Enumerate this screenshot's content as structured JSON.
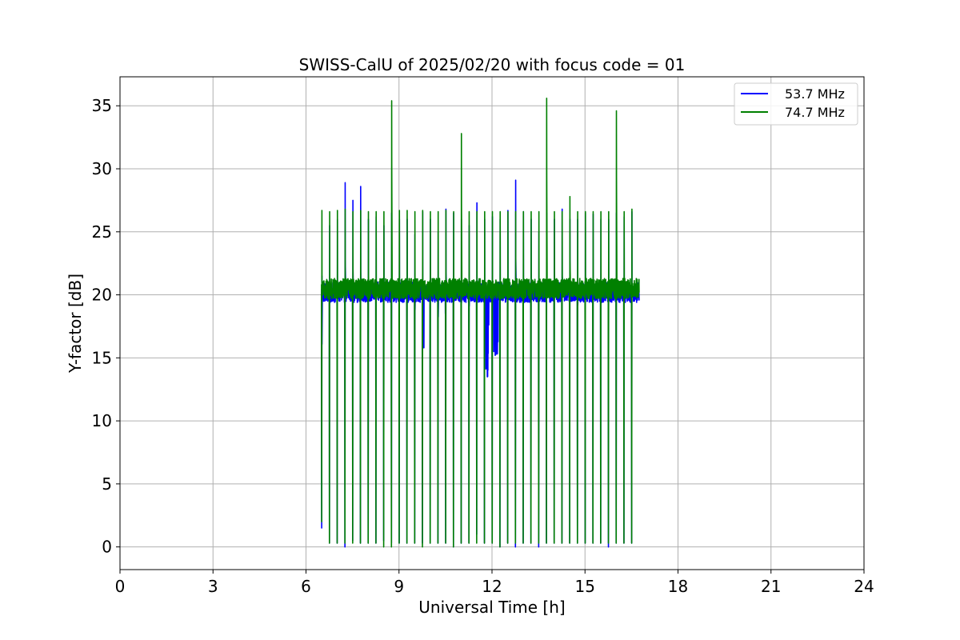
{
  "chart_data": {
    "type": "line",
    "title": "SWISS-CalU of 2025/02/20 with focus code = 01",
    "xlabel": "Universal Time [h]",
    "ylabel": "Y-factor [dB]",
    "xlim": [
      0,
      24
    ],
    "ylim": [
      -1.8,
      37.3
    ],
    "xticks": [
      0,
      3,
      6,
      9,
      12,
      15,
      18,
      21,
      24
    ],
    "yticks": [
      0,
      5,
      10,
      15,
      20,
      25,
      30,
      35
    ],
    "grid": true,
    "legend_position": "top-right",
    "series": [
      {
        "name": "53.7 MHz",
        "color": "#0000ff",
        "x_start": 6.5,
        "x_end": 16.75,
        "baseline": 20.2,
        "sweep_times": [
          6.5,
          6.75,
          7.0,
          7.25,
          7.5,
          7.75,
          8.0,
          8.25,
          8.5,
          8.75,
          9.0,
          9.25,
          9.5,
          9.75,
          10.0,
          10.25,
          10.5,
          10.75,
          11.0,
          11.25,
          11.5,
          11.75,
          12.0,
          12.25,
          12.5,
          12.75,
          13.0,
          13.25,
          13.5,
          13.75,
          14.0,
          14.25,
          14.5,
          14.75,
          15.0,
          15.25,
          15.5,
          15.75,
          16.0,
          16.25,
          16.5
        ],
        "sweep_min": [
          1.5,
          0.3,
          0.3,
          0.0,
          0.5,
          0.3,
          0.3,
          0.3,
          0.5,
          0.3,
          0.3,
          0.3,
          0.3,
          0.3,
          0.3,
          0.3,
          0.3,
          0.0,
          0.3,
          0.3,
          1.0,
          0.3,
          0.3,
          0.0,
          0.3,
          0.0,
          0.3,
          0.3,
          0.0,
          0.3,
          0.3,
          0.3,
          0.3,
          0.3,
          0.3,
          0.3,
          0.3,
          0.0,
          0.3,
          0.3,
          0.3
        ],
        "sweep_max": [
          21.5,
          25.5,
          26.0,
          28.9,
          27.5,
          28.6,
          26.0,
          26.2,
          25.5,
          26.5,
          26.0,
          26.0,
          24.8,
          26.6,
          26.0,
          25.0,
          26.8,
          26.5,
          26.0,
          25.5,
          27.3,
          26.0,
          26.2,
          26.0,
          26.7,
          29.1,
          26.6,
          26.0,
          25.0,
          26.5,
          26.0,
          26.8,
          26.0,
          26.0,
          26.5,
          26.4,
          26.0,
          26.0,
          26.5,
          26.2,
          26.6
        ],
        "dips": [
          {
            "x": 9.8,
            "y": 15.8
          },
          {
            "x": 10.5,
            "y": 18.5
          },
          {
            "x": 11.85,
            "y": 13.5
          },
          {
            "x": 12.1,
            "y": 15.2
          },
          {
            "x": 12.15,
            "y": 15.3
          }
        ]
      },
      {
        "name": "74.7 MHz",
        "color": "#008000",
        "x_start": 6.5,
        "x_end": 16.75,
        "baseline": 20.5,
        "sweep_times": [
          6.5,
          6.75,
          7.0,
          7.25,
          7.5,
          7.75,
          8.0,
          8.25,
          8.5,
          8.75,
          9.0,
          9.25,
          9.5,
          9.75,
          10.0,
          10.25,
          10.5,
          10.75,
          11.0,
          11.25,
          11.5,
          11.75,
          12.0,
          12.25,
          12.5,
          12.75,
          13.0,
          13.25,
          13.5,
          13.75,
          14.0,
          14.25,
          14.5,
          14.75,
          15.0,
          15.25,
          15.5,
          15.75,
          16.0,
          16.25,
          16.5
        ],
        "sweep_min": [
          2.0,
          0.3,
          0.3,
          0.3,
          0.3,
          0.3,
          0.3,
          0.3,
          0.0,
          0.0,
          0.3,
          0.3,
          0.3,
          0.0,
          0.3,
          0.3,
          0.3,
          0.0,
          0.3,
          0.3,
          0.3,
          0.3,
          0.3,
          0.0,
          0.3,
          0.3,
          0.3,
          0.3,
          0.3,
          0.3,
          0.3,
          0.3,
          0.3,
          0.3,
          0.3,
          0.3,
          0.3,
          0.3,
          0.3,
          0.3,
          0.3
        ],
        "sweep_max": [
          26.7,
          26.6,
          26.7,
          26.8,
          26.6,
          26.7,
          26.6,
          26.6,
          26.6,
          35.4,
          26.7,
          26.7,
          26.6,
          26.7,
          26.6,
          26.6,
          26.7,
          26.6,
          32.8,
          26.6,
          26.6,
          26.6,
          26.6,
          26.6,
          26.6,
          26.6,
          26.6,
          26.6,
          26.6,
          35.6,
          26.6,
          26.6,
          27.8,
          26.6,
          26.6,
          26.6,
          26.6,
          26.6,
          34.6,
          26.6,
          26.8
        ]
      }
    ]
  }
}
